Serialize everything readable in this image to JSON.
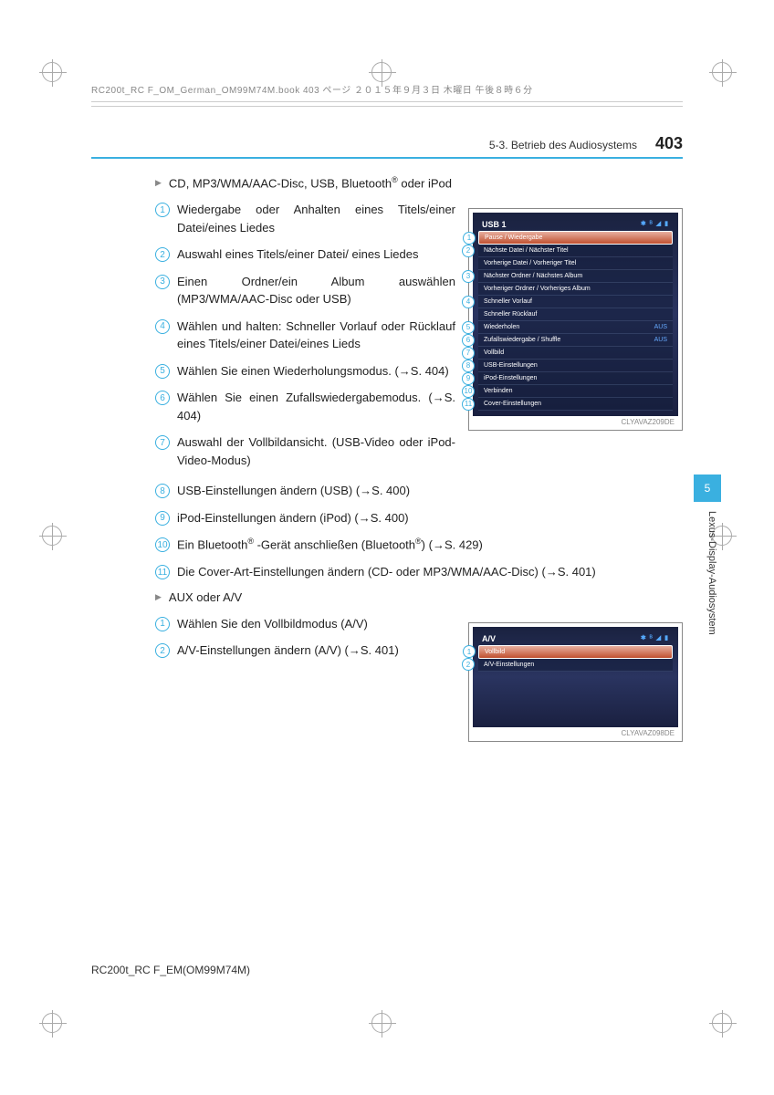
{
  "meta": {
    "header": "RC200t_RC F_OM_German_OM99M74M.book  403 ページ  ２０１５年９月３日  木曜日  午後８時６分",
    "footer": "RC200t_RC F_EM(OM99M74M)"
  },
  "header": {
    "section": "5-3. Betrieb des Audiosystems",
    "pageNum": "403"
  },
  "sideTab": {
    "num": "5",
    "text": "Lexus-Display-Audiosystem"
  },
  "section1": {
    "heading": "CD, MP3/WMA/AAC-Disc, USB, Bluetooth",
    "headingSuffix": " oder iPod",
    "items": [
      "Wiedergabe oder Anhalten eines Titels/einer Datei/eines Liedes",
      "Auswahl eines Titels/einer Datei/ eines Liedes",
      "Einen Ordner/ein Album auswählen (MP3/WMA/AAC-Disc oder USB)",
      "Wählen und halten: Schneller Vorlauf oder Rücklauf eines Titels/einer Datei/eines Lieds",
      "Wählen Sie einen Wiederholungsmodus. (→S. 404)",
      "Wählen Sie einen Zufallswiedergabemodus. (→S. 404)",
      "Auswahl der Vollbildansicht. (USB-Video oder iPod-Video-Modus)"
    ],
    "itemsFull": [
      "USB-Einstellungen ändern (USB) (→S. 400)",
      "iPod-Einstellungen ändern (iPod) (→S. 400)",
      "Ein Bluetooth® -Gerät anschließen (Bluetooth®) (→S. 429)",
      "Die Cover-Art-Einstellungen ändern (CD- oder MP3/WMA/AAC-Disc) (→S. 401)"
    ]
  },
  "section2": {
    "heading": "AUX oder A/V",
    "items": [
      "Wählen Sie den Vollbildmodus (A/V)",
      "A/V-Einstellungen ändern (A/V) (→S. 401)"
    ]
  },
  "screen1": {
    "title": "USB 1",
    "caption": "CLYAVAZ209DE",
    "rows": [
      {
        "label": "Pause / Wiedergabe",
        "hl": true
      },
      {
        "label": "Nächste Datei / Nächster Titel"
      },
      {
        "label": "Vorherige Datei / Vorheriger Titel"
      },
      {
        "label": "Nächster Ordner / Nächstes Album"
      },
      {
        "label": "Vorheriger Ordner / Vorheriges Album"
      },
      {
        "label": "Schneller Vorlauf"
      },
      {
        "label": "Schneller Rücklauf"
      },
      {
        "label": "Wiederholen",
        "val": "AUS"
      },
      {
        "label": "Zufallswiedergabe / Shuffle",
        "val": "AUS"
      },
      {
        "label": "Vollbild"
      },
      {
        "label": "USB-Einstellungen"
      },
      {
        "label": "iPod-Einstellungen"
      },
      {
        "label": "Verbinden"
      },
      {
        "label": "Cover-Einstellungen"
      }
    ],
    "markers": [
      {
        "n": "1",
        "row": 0
      },
      {
        "n": "2",
        "row": 1
      },
      {
        "n": "3",
        "row": 3
      },
      {
        "n": "4",
        "row": 5
      },
      {
        "n": "5",
        "row": 7
      },
      {
        "n": "6",
        "row": 8
      },
      {
        "n": "7",
        "row": 9
      },
      {
        "n": "8",
        "row": 10
      },
      {
        "n": "9",
        "row": 11
      },
      {
        "n": "10",
        "row": 12
      },
      {
        "n": "11",
        "row": 13
      }
    ]
  },
  "screen2": {
    "title": "A/V",
    "caption": "CLYAVAZ098DE",
    "rows": [
      {
        "label": "Vollbild",
        "hl": true
      },
      {
        "label": "A/V-Einstellungen"
      }
    ],
    "markers": [
      {
        "n": "1",
        "row": 0
      },
      {
        "n": "2",
        "row": 1
      }
    ]
  }
}
